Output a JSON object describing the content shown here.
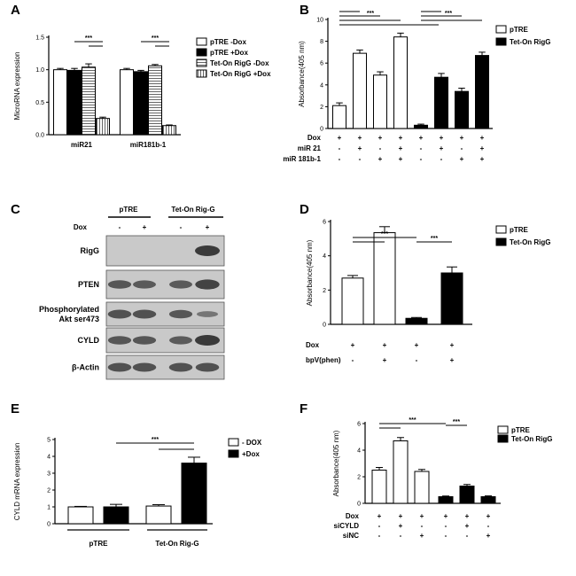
{
  "panels": [
    "A",
    "B",
    "C",
    "D",
    "E",
    "F"
  ],
  "colors": {
    "black": "#000000",
    "white": "#ffffff",
    "grey": "#bbbbbb",
    "blot_bg": "#c9c9c9",
    "band": "#333333"
  },
  "significance": "***",
  "chart_data": [
    {
      "panel": "A",
      "type": "bar",
      "ylabel": "MicroRNA expression",
      "xlabel": "",
      "ylim": [
        0,
        1.5
      ],
      "yticks": [
        "0.0",
        "0.5",
        "1.0",
        "1.5"
      ],
      "categories": [
        "miR21",
        "miR181b-1"
      ],
      "series": [
        {
          "name": "pTRE -Dox",
          "fill": "white",
          "values": [
            1.0,
            1.0
          ],
          "err": [
            0.02,
            0.02
          ]
        },
        {
          "name": "pTRE +Dox",
          "fill": "black",
          "values": [
            0.99,
            0.97
          ],
          "err": [
            0.03,
            0.02
          ]
        },
        {
          "name": "Tet-On RigG -Dox",
          "fill": "hlines",
          "values": [
            1.04,
            1.06
          ],
          "err": [
            0.05,
            0.02
          ]
        },
        {
          "name": "Tet-On RigG +Dox",
          "fill": "vlines",
          "values": [
            0.25,
            0.14
          ],
          "err": [
            0.02,
            0.01
          ]
        }
      ]
    },
    {
      "panel": "B",
      "type": "bar",
      "ylabel": "Absorbance(405 nm)",
      "ylim": [
        0,
        10
      ],
      "yticks": [
        "0",
        "2",
        "4",
        "6",
        "8",
        "10"
      ],
      "series": [
        {
          "name": "pTRE",
          "fill": "white",
          "values": [
            2.1,
            6.9,
            4.9,
            8.4
          ],
          "err": [
            0.25,
            0.3,
            0.3,
            0.35
          ]
        },
        {
          "name": "Tet-On RigG",
          "fill": "black",
          "values": [
            0.3,
            4.7,
            3.4,
            6.7
          ],
          "err": [
            0.1,
            0.35,
            0.3,
            0.3
          ]
        }
      ],
      "conditions": [
        {
          "label": "Dox",
          "signs": [
            "+",
            "+",
            "+",
            "+",
            "+",
            "+",
            "+",
            "+"
          ]
        },
        {
          "label": "miR 21",
          "signs": [
            "-",
            "+",
            "-",
            "+",
            "-",
            "+",
            "-",
            "+"
          ]
        },
        {
          "label": "miR 181b-1",
          "signs": [
            "-",
            "-",
            "+",
            "+",
            "-",
            "-",
            "+",
            "+"
          ]
        }
      ]
    },
    {
      "panel": "D",
      "type": "bar",
      "ylabel": "Absorbance(405 nm)",
      "ylim": [
        0,
        6
      ],
      "yticks": [
        "0",
        "2",
        "4",
        "6"
      ],
      "series": [
        {
          "name": "pTRE",
          "fill": "white",
          "values": [
            2.7,
            5.35
          ],
          "err": [
            0.15,
            0.35
          ]
        },
        {
          "name": "Tet-On RigG",
          "fill": "black",
          "values": [
            0.35,
            3.0
          ],
          "err": [
            0.05,
            0.35
          ]
        }
      ],
      "conditions": [
        {
          "label": "Dox",
          "signs": [
            "+",
            "+",
            "+",
            "+"
          ]
        },
        {
          "label": "bpV(phen)",
          "signs": [
            "-",
            "+",
            "-",
            "+"
          ]
        }
      ]
    },
    {
      "panel": "E",
      "type": "bar",
      "ylabel": "CYLD mRNA expression",
      "ylim": [
        0,
        5
      ],
      "yticks": [
        "0",
        "1",
        "2",
        "3",
        "4",
        "5"
      ],
      "categories": [
        "pTRE",
        "Tet-On Rig-G"
      ],
      "series": [
        {
          "name": "- DOX",
          "fill": "white",
          "values": [
            1.0,
            1.05
          ],
          "err": [
            0.03,
            0.08
          ]
        },
        {
          "name": "+Dox",
          "fill": "black",
          "values": [
            1.0,
            3.6
          ],
          "err": [
            0.15,
            0.35
          ]
        }
      ]
    },
    {
      "panel": "F",
      "type": "bar",
      "ylabel": "Absorbance(405 nm)",
      "ylim": [
        0,
        6
      ],
      "yticks": [
        "0",
        "2",
        "4",
        "6"
      ],
      "series": [
        {
          "name": "pTRE",
          "fill": "white",
          "values": [
            2.5,
            4.7,
            2.4
          ],
          "err": [
            0.2,
            0.25,
            0.15
          ]
        },
        {
          "name": "Tet-On RigG",
          "fill": "black",
          "values": [
            0.5,
            1.3,
            0.5
          ],
          "err": [
            0.05,
            0.12,
            0.06
          ]
        }
      ],
      "conditions": [
        {
          "label": "Dox",
          "signs": [
            "+",
            "+",
            "+",
            "+",
            "+",
            "+"
          ]
        },
        {
          "label": "siCYLD",
          "signs": [
            "-",
            "+",
            "-",
            "-",
            "+",
            "-"
          ]
        },
        {
          "label": "siNC",
          "signs": [
            "-",
            "-",
            "+",
            "-",
            "-",
            "+"
          ]
        }
      ]
    }
  ],
  "blot": {
    "groups": [
      "pTRE",
      "Tet-On Rig-G"
    ],
    "dox_label": "Dox",
    "dox_signs": [
      "-",
      "+",
      "-",
      "+"
    ],
    "rows": [
      {
        "label": "RigG",
        "bands": [
          0,
          0,
          0,
          1.0
        ]
      },
      {
        "label": "PTEN",
        "bands": [
          0.7,
          0.65,
          0.65,
          0.9
        ]
      },
      {
        "label": "Phosphorylated\nAkt ser473",
        "bands": [
          0.75,
          0.75,
          0.7,
          0.35
        ]
      },
      {
        "label": "CYLD",
        "bands": [
          0.7,
          0.7,
          0.65,
          1.0
        ]
      },
      {
        "label": "β-Actin",
        "bands": [
          0.75,
          0.75,
          0.75,
          0.75
        ]
      }
    ]
  }
}
